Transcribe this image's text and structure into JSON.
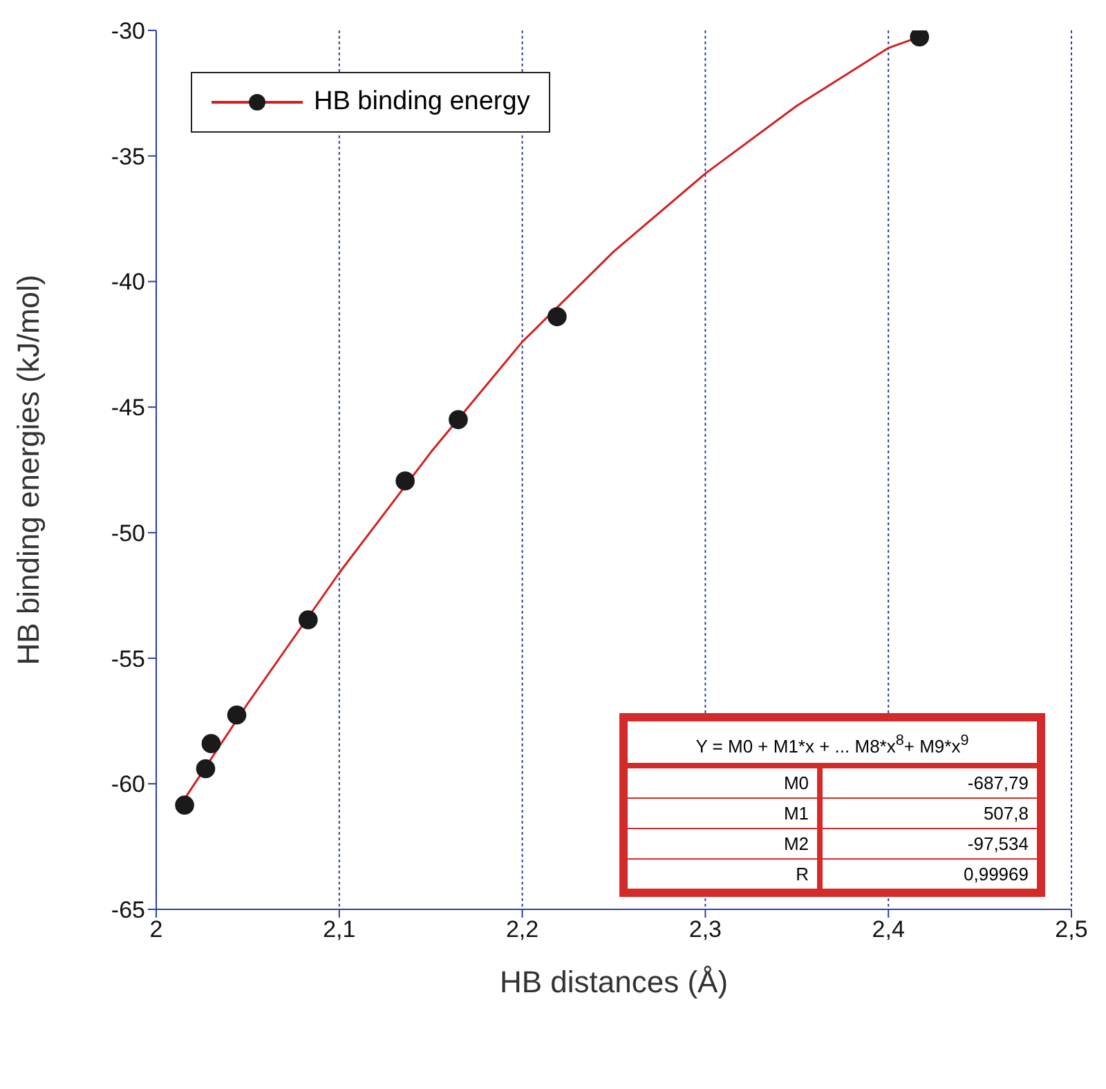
{
  "chart_data": {
    "type": "scatter",
    "xlabel": "HB distances (Å)",
    "ylabel": "HB binding energies (kJ/mol)",
    "xlim": [
      2,
      2.5
    ],
    "xticks": [
      2,
      {
        "value": 2.1,
        "label": "2,1"
      },
      {
        "value": 2.2,
        "label": "2,2"
      },
      {
        "value": 2.3,
        "label": "2,3"
      },
      {
        "value": 2.4,
        "label": "2,4"
      },
      {
        "value": 2.5,
        "label": "2,5"
      }
    ],
    "ylim": [
      -65,
      -30
    ],
    "yticks": [
      -65,
      -60,
      -55,
      -50,
      -45,
      -40,
      -35,
      -30
    ],
    "grid": "x",
    "legend": "top left",
    "marker": "circle",
    "series": [
      {
        "name": "HB binding energy",
        "color": "#1a1a1a",
        "x": [
          2.0155,
          2.027,
          2.03,
          2.044,
          2.083,
          2.136,
          2.165,
          2.219,
          2.417
        ],
        "values": [
          -60.85,
          -59.4,
          -58.4,
          -57.26,
          -53.47,
          -47.94,
          -45.5,
          -41.4,
          -30.26
        ]
      },
      {
        "type": "line",
        "marker": "none",
        "color": "#d42020",
        "x": [
          2.0155,
          2.05,
          2.1,
          2.15,
          2.2,
          2.25,
          2.3,
          2.35,
          2.4,
          2.417
        ],
        "values": [
          -60.6,
          -56.8,
          -51.6,
          -46.8,
          -42.4,
          -38.8,
          -35.7,
          -33.0,
          -30.7,
          -30.26
        ]
      }
    ],
    "annotations": [
      "Y = M0 + M1*x + ... M8*x$^{8}$+ M9*x$^{9}$",
      "M0",
      "-687,79",
      "M1",
      "507,8",
      "M2",
      "-97,534",
      "R",
      "0,99969"
    ]
  }
}
